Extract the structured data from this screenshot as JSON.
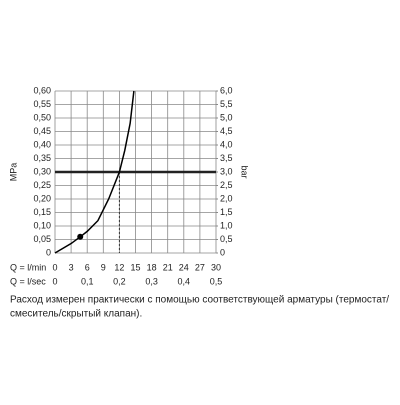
{
  "chart_data": {
    "type": "line",
    "ylabel": "MPa",
    "y2label": "bar",
    "xlabel": "Q = l/min",
    "x2label": "Q = l/sec",
    "xlim": [
      0,
      30
    ],
    "xticks": [
      0,
      3,
      6,
      9,
      12,
      15,
      18,
      21,
      24,
      27,
      30
    ],
    "x2lim": [
      0,
      0.5
    ],
    "x2ticks": [
      0,
      {
        "value": 0.1,
        "label": "0,1"
      },
      {
        "value": 0.2,
        "label": "0,2"
      },
      {
        "value": 0.3,
        "label": "0,3"
      },
      {
        "value": 0.4,
        "label": "0,4"
      },
      {
        "value": 0.5,
        "label": "0,5"
      }
    ],
    "ylim": [
      0,
      0.6
    ],
    "yticks": [
      0,
      {
        "value": 0.05,
        "label": "0,05"
      },
      {
        "value": 0.1,
        "label": "0,10"
      },
      {
        "value": 0.15,
        "label": "0,15"
      },
      {
        "value": 0.2,
        "label": "0,20"
      },
      {
        "value": 0.25,
        "label": "0,25"
      },
      {
        "value": 0.3,
        "label": "0,30"
      },
      {
        "value": 0.35,
        "label": "0,35"
      },
      {
        "value": 0.4,
        "label": "0,40"
      },
      {
        "value": 0.45,
        "label": "0,45"
      },
      {
        "value": 0.5,
        "label": "0,50"
      },
      {
        "value": 0.55,
        "label": "0,55"
      },
      {
        "value": 0.6,
        "label": "0,60"
      }
    ],
    "y2lim": [
      0,
      6
    ],
    "y2ticks": [
      0,
      {
        "value": 0.5,
        "label": "0,5"
      },
      {
        "value": 1,
        "label": "1,0"
      },
      {
        "value": 1.5,
        "label": "1,5"
      },
      {
        "value": 2,
        "label": "2,0"
      },
      {
        "value": 2.5,
        "label": "2,5"
      },
      {
        "value": 3,
        "label": "3,0"
      },
      {
        "value": 3.5,
        "label": "3,5"
      },
      {
        "value": 4,
        "label": "4,0"
      },
      {
        "value": 4.5,
        "label": "4,5"
      },
      {
        "value": 5,
        "label": "5,0"
      },
      {
        "value": 5.5,
        "label": "5,5"
      },
      {
        "value": 6,
        "label": "6,0"
      }
    ],
    "grid": true,
    "series": [
      {
        "color": "#000000",
        "x": [
          0,
          3,
          4.7,
          6,
          8,
          10,
          12,
          13,
          14,
          14.7
        ],
        "y": [
          0,
          0.035,
          0.06,
          0.08,
          0.12,
          0.2,
          0.3,
          0.38,
          0.48,
          0.6
        ]
      }
    ],
    "marker": {
      "x": 4.7,
      "y": 0.06
    },
    "hline": 0.3,
    "vline": 12,
    "caption": [
      "Расход измерен практически с помощью соответствующей арматуры (термостат/",
      "смеситель/скрытый клапан)."
    ]
  }
}
